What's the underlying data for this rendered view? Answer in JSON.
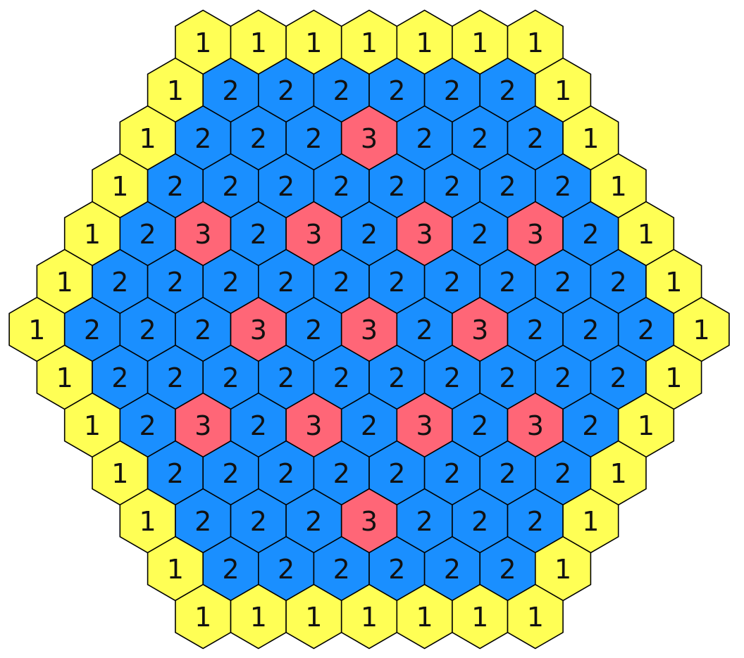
{
  "colors": {
    "1": "#FFFF55",
    "2": "#1A8FFF",
    "3": "#FF6677"
  },
  "rows": [
    [
      1,
      1,
      1,
      1,
      1,
      1,
      1
    ],
    [
      1,
      2,
      2,
      2,
      2,
      2,
      2,
      1
    ],
    [
      1,
      2,
      2,
      2,
      3,
      2,
      2,
      2,
      1
    ],
    [
      1,
      2,
      2,
      2,
      2,
      2,
      2,
      2,
      2,
      1
    ],
    [
      1,
      2,
      3,
      2,
      3,
      2,
      3,
      2,
      3,
      2,
      1
    ],
    [
      1,
      2,
      2,
      2,
      2,
      2,
      2,
      2,
      2,
      2,
      2,
      1
    ],
    [
      1,
      2,
      2,
      2,
      3,
      2,
      3,
      2,
      3,
      2,
      2,
      2,
      1
    ],
    [
      1,
      2,
      2,
      2,
      2,
      2,
      2,
      2,
      2,
      2,
      2,
      1
    ],
    [
      1,
      2,
      3,
      2,
      3,
      2,
      3,
      2,
      3,
      2,
      1
    ],
    [
      1,
      2,
      2,
      2,
      2,
      2,
      2,
      2,
      2,
      1
    ],
    [
      1,
      2,
      2,
      2,
      3,
      2,
      2,
      2,
      1
    ],
    [
      1,
      2,
      2,
      2,
      2,
      2,
      2,
      1
    ],
    [
      1,
      1,
      1,
      1,
      1,
      1,
      1
    ]
  ]
}
